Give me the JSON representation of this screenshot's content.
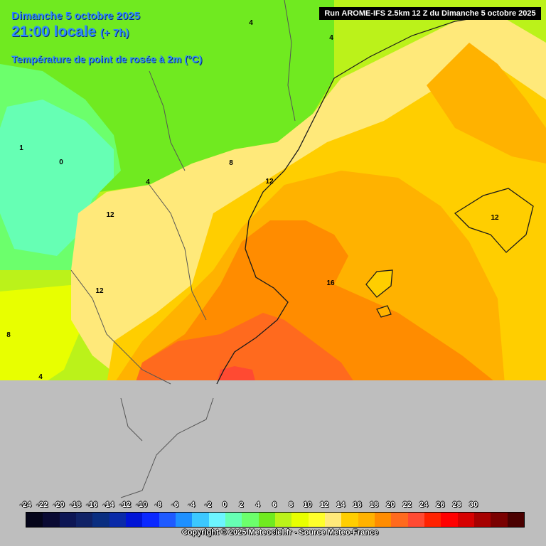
{
  "header": {
    "date": "Dimanche 5 octobre 2025",
    "time": "21:00 locale",
    "offset": "(+ 7h)",
    "parameter": "Température de point de rosée à 2m (°C)"
  },
  "run_info": "Run AROME-IFS 2.5km 12 Z du Dimanche 5 octobre 2025",
  "isoline_labels": [
    "4",
    "4",
    "1",
    "0",
    "8",
    "4",
    "12",
    "12",
    "12",
    "12",
    "16",
    "8",
    "4"
  ],
  "scale": {
    "labels": [
      "-24",
      "-22",
      "-20",
      "-18",
      "-16",
      "-14",
      "-12",
      "-10",
      "-8",
      "-6",
      "-4",
      "-2",
      "0",
      "2",
      "4",
      "6",
      "8",
      "10",
      "12",
      "14",
      "16",
      "18",
      "20",
      "22",
      "24",
      "26",
      "28",
      "30"
    ],
    "colors": [
      "#05051a",
      "#0a0a33",
      "#0d1654",
      "#102266",
      "#0a2e80",
      "#0a2aa8",
      "#0014d6",
      "#0a28ff",
      "#1e5aff",
      "#1e90ff",
      "#3cc8ff",
      "#6cf5ff",
      "#66ffb4",
      "#6cff6c",
      "#70ea20",
      "#bbf21a",
      "#e8ff00",
      "#ffff2a",
      "#ffe97a",
      "#ffce00",
      "#ffb200",
      "#ff8c00",
      "#ff6a1e",
      "#ff4a32",
      "#ff2200",
      "#ff0000",
      "#d60000",
      "#a60000",
      "#7a0000",
      "#4a0000"
    ]
  },
  "copyright": "Copyright © 2025 Meteociel.fr - Source Meteo-France",
  "colors": {
    "no_data": "#bebebe",
    "title": "#2f8cff",
    "coast_line": "#1a1a1a",
    "border_line": "#555555"
  }
}
